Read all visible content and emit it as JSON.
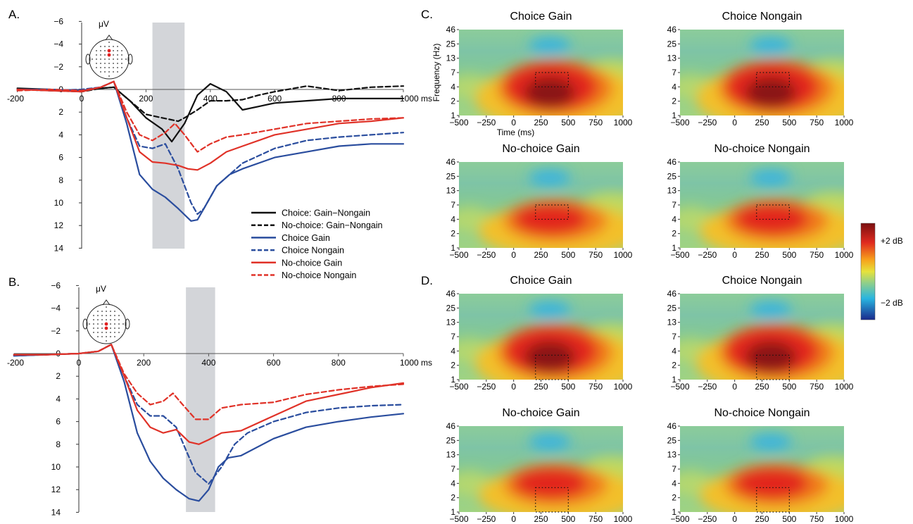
{
  "panels": {
    "A": "A.",
    "B": "B.",
    "C": "C.",
    "D": "D."
  },
  "erp_common": {
    "unit_label": "μV",
    "x_ticks": [
      "-200",
      "0",
      "200",
      "400",
      "600",
      "800",
      "1000"
    ],
    "x_unit": "ms",
    "y_ticks": [
      "−6",
      "−4",
      "−2",
      "0",
      "2",
      "4",
      "6",
      "8",
      "10",
      "12",
      "14"
    ],
    "y_values": [
      -6,
      -4,
      -2,
      0,
      2,
      4,
      6,
      8,
      10,
      12,
      14
    ],
    "legend": [
      {
        "label": "Choice: Gain−Nongain",
        "color": "#111111",
        "dash": false
      },
      {
        "label": "No-choice: Gain−Nongain",
        "color": "#111111",
        "dash": true
      },
      {
        "label": "Choice Gain",
        "color": "#2a4d9e",
        "dash": false
      },
      {
        "label": "Choice Nongain",
        "color": "#2a4d9e",
        "dash": true
      },
      {
        "label": "No-choice Gain",
        "color": "#e03228",
        "dash": false
      },
      {
        "label": "No-choice Nongain",
        "color": "#e03228",
        "dash": true
      }
    ]
  },
  "tf_common": {
    "y_ticks": [
      "46",
      "25",
      "13",
      "7",
      "4",
      "2",
      "1"
    ],
    "x_ticks": [
      "−500",
      "−250",
      "0",
      "250",
      "500",
      "750",
      "1000"
    ],
    "ylabel": "Frequency (Hz)",
    "xlabel": "Time (ms)",
    "colorbar_top": "+2 dB",
    "colorbar_bottom": "−2 dB"
  },
  "tf_titles": {
    "c1": "Choice Gain",
    "c2": "Choice Nongain",
    "c3": "No-choice Gain",
    "c4": "No-choice Nongain",
    "d1": "Choice Gain",
    "d2": "Choice Nongain",
    "d3": "No-choice Gain",
    "d4": "No-choice Nongain"
  },
  "chart_data": [
    {
      "panel": "A",
      "type": "line",
      "xlim": [
        -200,
        1000
      ],
      "ylim": [
        -6,
        14
      ],
      "y_inverted": true,
      "ylabel": "μV",
      "xlabel": "ms",
      "shaded_interval": [
        220,
        320
      ],
      "series": [
        {
          "name": "Choice: Gain−Nongain",
          "color": "#111111",
          "dash": false,
          "x": [
            -200,
            -100,
            0,
            60,
            100,
            150,
            200,
            250,
            280,
            320,
            360,
            400,
            450,
            500,
            550,
            600,
            700,
            800,
            900,
            1000
          ],
          "y": [
            -0.1,
            0.0,
            0.1,
            -0.1,
            -0.2,
            1.0,
            2.5,
            3.5,
            4.6,
            3.0,
            0.5,
            -0.5,
            0.2,
            1.8,
            1.5,
            1.2,
            1.0,
            0.8,
            0.8,
            0.8
          ]
        },
        {
          "name": "No-choice: Gain−Nongain",
          "color": "#111111",
          "dash": true,
          "x": [
            -200,
            -100,
            0,
            60,
            100,
            150,
            200,
            250,
            300,
            320,
            360,
            400,
            450,
            500,
            550,
            600,
            700,
            800,
            900,
            1000
          ],
          "y": [
            0.0,
            0.1,
            0.2,
            -0.1,
            -0.2,
            1.0,
            2.2,
            2.5,
            2.8,
            2.5,
            1.8,
            1.0,
            1.0,
            0.9,
            0.5,
            0.2,
            -0.3,
            0.1,
            -0.2,
            -0.3
          ]
        },
        {
          "name": "Choice Gain",
          "color": "#2a4d9e",
          "dash": false,
          "x": [
            -200,
            -100,
            0,
            60,
            100,
            140,
            180,
            220,
            260,
            300,
            340,
            360,
            380,
            420,
            460,
            500,
            600,
            700,
            800,
            900,
            1000
          ],
          "y": [
            0.0,
            0.0,
            0.1,
            -0.2,
            -0.7,
            3.0,
            7.5,
            8.8,
            9.5,
            10.5,
            11.6,
            11.5,
            10.5,
            8.5,
            7.5,
            7.0,
            6.0,
            5.5,
            5.0,
            4.8,
            4.8
          ]
        },
        {
          "name": "Choice Nongain",
          "color": "#2a4d9e",
          "dash": true,
          "x": [
            -200,
            -100,
            0,
            60,
            100,
            140,
            180,
            220,
            260,
            300,
            340,
            360,
            380,
            420,
            460,
            500,
            600,
            700,
            800,
            900,
            1000
          ],
          "y": [
            0.0,
            0.1,
            0.0,
            -0.2,
            -0.7,
            2.5,
            5.0,
            5.2,
            4.8,
            7.0,
            10.0,
            11.0,
            10.5,
            8.5,
            7.5,
            6.5,
            5.2,
            4.5,
            4.2,
            4.0,
            3.8
          ]
        },
        {
          "name": "No-choice Gain",
          "color": "#e03228",
          "dash": false,
          "x": [
            -200,
            -100,
            0,
            60,
            100,
            140,
            180,
            220,
            260,
            300,
            330,
            360,
            400,
            450,
            500,
            600,
            700,
            800,
            900,
            1000
          ],
          "y": [
            0.0,
            0.1,
            0.2,
            -0.2,
            -0.7,
            2.5,
            5.5,
            6.4,
            6.5,
            6.7,
            7.0,
            7.1,
            6.5,
            5.5,
            5.0,
            4.0,
            3.5,
            3.0,
            2.8,
            2.5
          ]
        },
        {
          "name": "No-choice Nongain",
          "color": "#e03228",
          "dash": true,
          "x": [
            -200,
            -100,
            0,
            60,
            100,
            140,
            180,
            220,
            260,
            290,
            320,
            360,
            400,
            450,
            500,
            600,
            700,
            800,
            900,
            1000
          ],
          "y": [
            0.1,
            0.0,
            0.1,
            -0.2,
            -0.7,
            2.0,
            4.0,
            4.5,
            3.8,
            3.0,
            4.0,
            5.5,
            4.8,
            4.2,
            4.0,
            3.5,
            3.0,
            2.8,
            2.6,
            2.5
          ]
        }
      ]
    },
    {
      "panel": "B",
      "type": "line",
      "xlim": [
        -200,
        1000
      ],
      "ylim": [
        -6,
        14
      ],
      "y_inverted": true,
      "ylabel": "μV",
      "xlabel": "ms",
      "shaded_interval": [
        330,
        420
      ],
      "series": [
        {
          "name": "Choice Gain",
          "color": "#2a4d9e",
          "dash": false,
          "x": [
            -200,
            -100,
            0,
            60,
            100,
            140,
            180,
            220,
            260,
            300,
            340,
            370,
            400,
            430,
            460,
            500,
            600,
            700,
            800,
            900,
            1000
          ],
          "y": [
            0.2,
            0.1,
            0.0,
            -0.2,
            -0.8,
            2.5,
            7.0,
            9.5,
            11.0,
            12.0,
            12.8,
            13.0,
            12.0,
            10.0,
            9.2,
            9.0,
            7.5,
            6.5,
            6.0,
            5.6,
            5.3
          ]
        },
        {
          "name": "Choice Nongain",
          "color": "#2a4d9e",
          "dash": true,
          "x": [
            -200,
            -100,
            0,
            60,
            100,
            140,
            180,
            220,
            260,
            300,
            330,
            360,
            400,
            440,
            480,
            520,
            600,
            700,
            800,
            900,
            1000
          ],
          "y": [
            0.2,
            0.1,
            0.0,
            -0.2,
            -0.8,
            2.0,
            4.5,
            5.5,
            5.5,
            6.5,
            8.5,
            10.5,
            11.5,
            10.0,
            8.0,
            7.0,
            6.0,
            5.2,
            4.8,
            4.6,
            4.5
          ]
        },
        {
          "name": "No-choice Gain",
          "color": "#e03228",
          "dash": false,
          "x": [
            -200,
            -100,
            0,
            60,
            100,
            140,
            180,
            220,
            260,
            300,
            340,
            370,
            400,
            440,
            500,
            600,
            700,
            800,
            900,
            1000
          ],
          "y": [
            0.1,
            0.1,
            0.0,
            -0.2,
            -0.8,
            2.0,
            5.0,
            6.5,
            7.0,
            6.7,
            7.8,
            8.0,
            7.6,
            7.0,
            6.8,
            5.5,
            4.2,
            3.6,
            3.0,
            2.6
          ]
        },
        {
          "name": "No-choice Nongain",
          "color": "#e03228",
          "dash": true,
          "x": [
            -200,
            -100,
            0,
            60,
            100,
            140,
            180,
            220,
            260,
            290,
            320,
            360,
            400,
            440,
            500,
            600,
            700,
            800,
            900,
            1000
          ],
          "y": [
            0.1,
            0.1,
            0.0,
            -0.2,
            -0.8,
            1.8,
            3.5,
            4.5,
            4.2,
            3.5,
            4.5,
            5.8,
            5.8,
            4.8,
            4.5,
            4.3,
            3.6,
            3.2,
            2.9,
            2.7
          ]
        }
      ]
    },
    {
      "panel": "C-D",
      "type": "heatmap",
      "xlabel": "Time (ms)",
      "ylabel": "Frequency (Hz)",
      "xlim": [
        -500,
        1000
      ],
      "y_ticks_hz": [
        1,
        2,
        4,
        7,
        13,
        25,
        46
      ],
      "colorbar_range_db": [
        -2,
        2
      ],
      "maps": [
        {
          "panel": "C",
          "title": "Choice Gain",
          "peak_db": 2.3,
          "window_ms": [
            200,
            500
          ],
          "window_hz": [
            4,
            7
          ]
        },
        {
          "panel": "C",
          "title": "Choice Nongain",
          "peak_db": 2.6,
          "window_ms": [
            200,
            500
          ],
          "window_hz": [
            4,
            7
          ]
        },
        {
          "panel": "C",
          "title": "No-choice Gain",
          "peak_db": 1.6,
          "window_ms": [
            200,
            500
          ],
          "window_hz": [
            4,
            7
          ]
        },
        {
          "panel": "C",
          "title": "No-choice Nongain",
          "peak_db": 1.5,
          "window_ms": [
            200,
            500
          ],
          "window_hz": [
            4,
            7
          ]
        },
        {
          "panel": "D",
          "title": "Choice Gain",
          "peak_db": 2.5,
          "window_ms": [
            200,
            500
          ],
          "window_hz": [
            1,
            3
          ]
        },
        {
          "panel": "D",
          "title": "Choice Nongain",
          "peak_db": 2.6,
          "window_ms": [
            200,
            500
          ],
          "window_hz": [
            1,
            3
          ]
        },
        {
          "panel": "D",
          "title": "No-choice Gain",
          "peak_db": 1.6,
          "window_ms": [
            200,
            500
          ],
          "window_hz": [
            1,
            3
          ]
        },
        {
          "panel": "D",
          "title": "No-choice Nongain",
          "peak_db": 1.5,
          "window_ms": [
            200,
            500
          ],
          "window_hz": [
            1,
            3
          ]
        }
      ]
    }
  ]
}
